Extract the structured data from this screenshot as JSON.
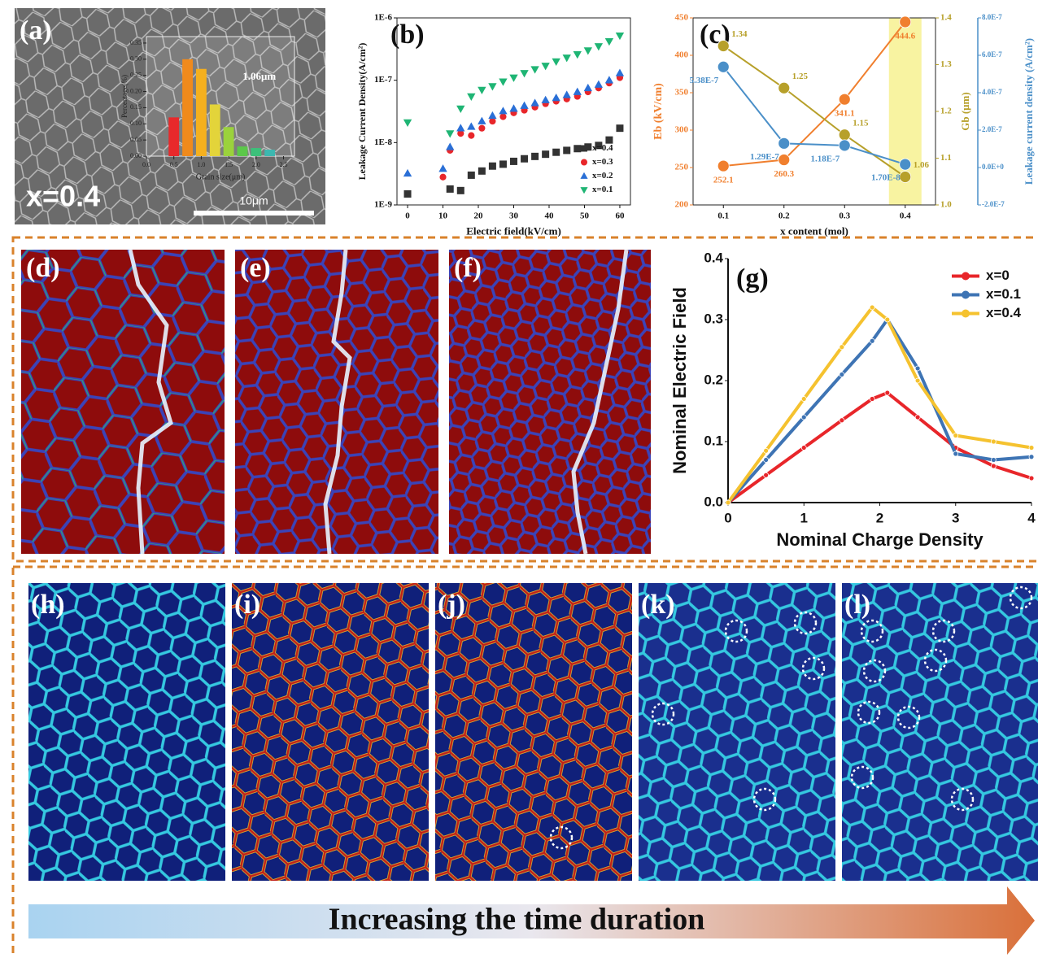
{
  "panel_labels": [
    "(a)",
    "(b)",
    "(c)",
    "(d)",
    "(e)",
    "(f)",
    "(g)",
    "(h)",
    "(i)",
    "(j)",
    "(k)",
    "(l)"
  ],
  "sem": {
    "sample": "x=0.4",
    "scale_bar": "10μm"
  },
  "arrow_text": "Increasing the time duration",
  "chart_data": [
    {
      "type": "histogram",
      "xlabel": "Grain size(μm)",
      "ylabel": "Percentage(%)",
      "annotation": "1.06μm",
      "bins": [
        0.375,
        0.625,
        0.875,
        1.125,
        1.375,
        1.625,
        1.875,
        2.125,
        2.375
      ],
      "values": [
        0.12,
        0.3,
        0.27,
        0.16,
        0.09,
        0.03,
        0.025,
        0.02
      ],
      "colors": [
        "#e8292b",
        "#f08a1c",
        "#f5b01e",
        "#e3d43a",
        "#9bd23c",
        "#5cc84a",
        "#3cc07a",
        "#3cb8b0"
      ],
      "xlim": [
        0,
        2.7
      ],
      "ylim": [
        0,
        0.37
      ],
      "xticks": [
        {
          "value": 0,
          "label": "0.0"
        },
        0.5,
        {
          "value": 1,
          "label": "1.0"
        },
        1.5,
        {
          "value": 2,
          "label": "2.0"
        },
        2.5
      ],
      "yticks": [
        {
          "value": 0,
          "label": "0.00"
        },
        0.05,
        {
          "value": 0.1,
          "label": "0.10"
        },
        0.15,
        {
          "value": 0.2,
          "label": "0.20"
        },
        0.25,
        {
          "value": 0.3,
          "label": "0.30"
        },
        0.35
      ]
    },
    {
      "type": "scatter",
      "xlabel": "Electric field(kV/cm)",
      "ylabel": "Leakage Current Density(A/cm²)",
      "log_y": true,
      "legend": "lower right",
      "x": [
        0,
        10,
        12,
        15,
        18,
        21,
        24,
        27,
        30,
        33,
        36,
        39,
        42,
        45,
        48,
        51,
        54,
        57,
        60
      ],
      "series": [
        {
          "name": "x=0.4",
          "color": "#333333",
          "marker": "square",
          "values": [
            1.5e-09,
            null,
            1.8e-09,
            1.7e-09,
            3e-09,
            3.5e-09,
            4.2e-09,
            4.5e-09,
            5e-09,
            5.5e-09,
            6e-09,
            6.5e-09,
            7e-09,
            7.5e-09,
            8e-09,
            8.5e-09,
            9e-09,
            1.1e-08,
            1.7e-08
          ]
        },
        {
          "name": "x=0.3",
          "color": "#e8262a",
          "marker": "circle",
          "values": [
            null,
            2.8e-09,
            7.5e-09,
            1.4e-08,
            1.3e-08,
            1.7e-08,
            2.2e-08,
            2.6e-08,
            3e-08,
            3.3e-08,
            3.7e-08,
            4.2e-08,
            4.6e-08,
            5e-08,
            5.5e-08,
            6.5e-08,
            7.5e-08,
            9e-08,
            1.1e-07
          ]
        },
        {
          "name": "x=0.2",
          "color": "#2a6fd6",
          "marker": "triangle-up",
          "values": [
            3.2e-09,
            3.8e-09,
            8.5e-09,
            1.7e-08,
            1.8e-08,
            2.2e-08,
            2.7e-08,
            3.2e-08,
            3.5e-08,
            3.9e-08,
            4.3e-08,
            4.8e-08,
            5.2e-08,
            5.8e-08,
            6.5e-08,
            7.5e-08,
            8.5e-08,
            1e-07,
            1.3e-07
          ]
        },
        {
          "name": "x=0.1",
          "color": "#1fb574",
          "marker": "triangle-down",
          "values": [
            2.1e-08,
            null,
            1.4e-08,
            3.5e-08,
            5.5e-08,
            7e-08,
            8e-08,
            9.5e-08,
            1.1e-07,
            1.3e-07,
            1.5e-07,
            1.7e-07,
            2e-07,
            2.3e-07,
            2.6e-07,
            3e-07,
            3.5e-07,
            4.2e-07,
            5.2e-07
          ]
        }
      ],
      "xlim": [
        -3,
        63
      ],
      "ylim": [
        1e-09,
        1e-06
      ],
      "xticks": [
        0,
        10,
        20,
        30,
        40,
        50,
        60
      ],
      "yticks": [
        {
          "value": 1e-09,
          "label": "1E-9"
        },
        {
          "value": 1e-08,
          "label": "1E-8"
        },
        {
          "value": 1e-07,
          "label": "1E-7"
        },
        {
          "value": 1e-06,
          "label": "1E-6"
        }
      ]
    },
    {
      "type": "line",
      "xlabel": "x content (mol)",
      "ylabel": "Eb (kV/cm)",
      "y2label": "Gb (μm)",
      "y3label": "Leakage current density (A/cm²)",
      "x": [
        0.1,
        0.2,
        0.3,
        0.4
      ],
      "xlim": [
        0.05,
        0.45
      ],
      "xticks": [
        0.1,
        0.2,
        0.3,
        0.4
      ],
      "ylim": [
        200,
        450
      ],
      "yticks": [
        200,
        250,
        300,
        350,
        400,
        450
      ],
      "y2lim": [
        1,
        1.4
      ],
      "y2ticks": [
        {
          "value": 1,
          "label": "1.0"
        },
        1.1,
        1.2,
        1.3,
        1.4
      ],
      "y3lim": [
        -2e-07,
        8e-07
      ],
      "y3ticks": [
        {
          "value": -2e-07,
          "label": "-2.0E-7"
        },
        {
          "value": 0,
          "label": "0.0E+0"
        },
        {
          "value": 2e-07,
          "label": "2.0E-7"
        },
        {
          "value": 4e-07,
          "label": "4.0E-7"
        },
        {
          "value": 6e-07,
          "label": "6.0E-7"
        },
        {
          "value": 8e-07,
          "label": "8.0E-7"
        }
      ],
      "series": [
        {
          "color": "#f07f2e",
          "marker": "circle",
          "values": [
            252.1,
            260.3,
            341.1,
            444.6
          ]
        },
        {
          "color": "#b7a02a",
          "marker": "circle",
          "axis": "y2",
          "values": [
            1.34,
            1.25,
            1.15,
            1.06
          ]
        },
        {
          "color": "#4a8fc8",
          "marker": "circle",
          "axis": "y3",
          "values": [
            5.38e-07,
            1.29e-07,
            1.18e-07,
            1.7e-08
          ],
          "value_labels": [
            "5.38E-7",
            "1.29E-7",
            "1.18E-7",
            "1.70E-8"
          ]
        }
      ]
    },
    {
      "type": "line",
      "xlabel": "Nominal Charge Density",
      "ylabel": "Nominal Electric Field",
      "legend": "upper right",
      "x": [
        0,
        0.5,
        1,
        1.5,
        1.9,
        2.1,
        2.5,
        3,
        3.5,
        4
      ],
      "series": [
        {
          "name": "x=0",
          "color": "#e8262a",
          "marker": "circle",
          "values": [
            0,
            0.045,
            0.09,
            0.135,
            0.17,
            0.18,
            0.14,
            0.09,
            0.06,
            0.04
          ]
        },
        {
          "name": "x=0.1",
          "color": "#3e74b4",
          "marker": "circle",
          "values": [
            0,
            0.07,
            0.14,
            0.21,
            0.265,
            0.3,
            0.22,
            0.08,
            0.07,
            0.075
          ]
        },
        {
          "name": "x=0.4",
          "color": "#f5c22f",
          "marker": "circle",
          "values": [
            0,
            0.085,
            0.17,
            0.255,
            0.32,
            0.3,
            0.2,
            0.11,
            0.1,
            0.09
          ]
        }
      ],
      "xlim": [
        0,
        4
      ],
      "ylim": [
        0,
        0.4
      ],
      "xticks": [
        0,
        1,
        2,
        3,
        4
      ],
      "yticks": [
        {
          "value": 0,
          "label": "0.0"
        },
        0.1,
        0.2,
        0.3,
        0.4
      ]
    }
  ]
}
